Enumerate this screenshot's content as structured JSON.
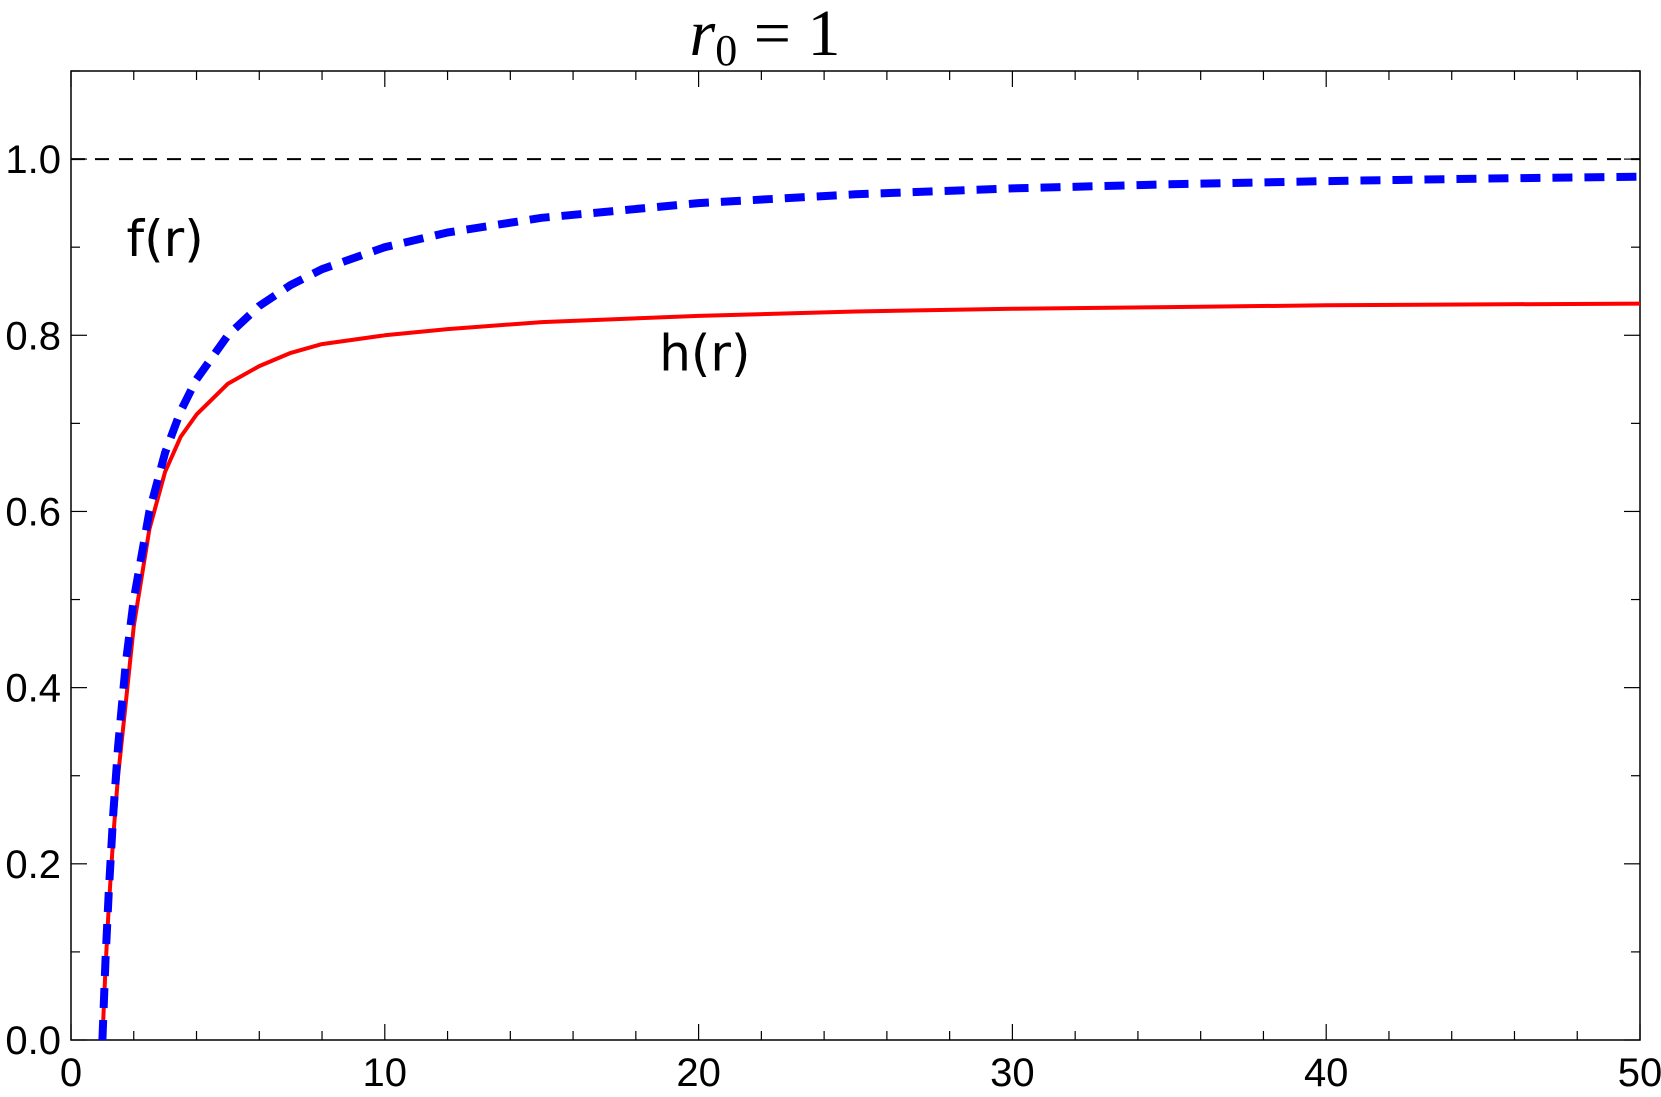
{
  "chart_data": {
    "type": "line",
    "title": {
      "symbol": "r",
      "subscript": "0",
      "rest": " = 1"
    },
    "xlabel": "",
    "ylabel": "",
    "xlim": [
      0,
      50
    ],
    "ylim": [
      0,
      1.1
    ],
    "x_ticks": [
      0,
      10,
      20,
      30,
      40,
      50
    ],
    "x_tick_labels": [
      "0",
      "10",
      "20",
      "30",
      "40",
      "50"
    ],
    "y_ticks": [
      0,
      0.2,
      0.4,
      0.6,
      0.8,
      1.0
    ],
    "y_tick_labels": [
      "0.0",
      "0.2",
      "0.4",
      "0.6",
      "0.8",
      "1.0"
    ],
    "grid": false,
    "reference_lines": [
      {
        "y": 1.0,
        "style": "dashed",
        "color": "#000000"
      }
    ],
    "series": [
      {
        "name": "f(r)",
        "style": "dashed",
        "color": "#0000ff",
        "x": [
          1,
          1.1,
          1.2,
          1.35,
          1.5,
          1.75,
          2,
          2.5,
          3,
          3.5,
          4,
          5,
          6,
          7,
          8,
          10,
          12,
          15,
          20,
          25,
          30,
          35,
          40,
          45,
          50
        ],
        "y": [
          0,
          0.0909,
          0.1667,
          0.2593,
          0.3333,
          0.4286,
          0.5,
          0.6,
          0.6667,
          0.7143,
          0.75,
          0.8,
          0.8333,
          0.8571,
          0.875,
          0.9,
          0.9167,
          0.9333,
          0.95,
          0.96,
          0.9667,
          0.9714,
          0.975,
          0.9778,
          0.98
        ]
      },
      {
        "name": "h(r)",
        "style": "solid",
        "color": "#ff0000",
        "x": [
          1,
          1.1,
          1.2,
          1.35,
          1.5,
          1.75,
          2,
          2.5,
          3,
          3.5,
          4,
          5,
          6,
          7,
          8,
          10,
          12,
          15,
          20,
          25,
          30,
          35,
          40,
          45,
          50
        ],
        "y": [
          0,
          0.082,
          0.15,
          0.233,
          0.3,
          0.384,
          0.47,
          0.58,
          0.645,
          0.685,
          0.71,
          0.745,
          0.765,
          0.78,
          0.79,
          0.8,
          0.807,
          0.815,
          0.822,
          0.827,
          0.83,
          0.832,
          0.834,
          0.835,
          0.836
        ]
      }
    ],
    "annotations": [
      {
        "text": "f(r)",
        "x": 3,
        "y": 0.89
      },
      {
        "text": "h(r)",
        "x": 20.2,
        "y": 0.76
      }
    ]
  },
  "colors": {
    "axis": "#000000",
    "f_series": "#0000ff",
    "h_series": "#ff0000"
  }
}
